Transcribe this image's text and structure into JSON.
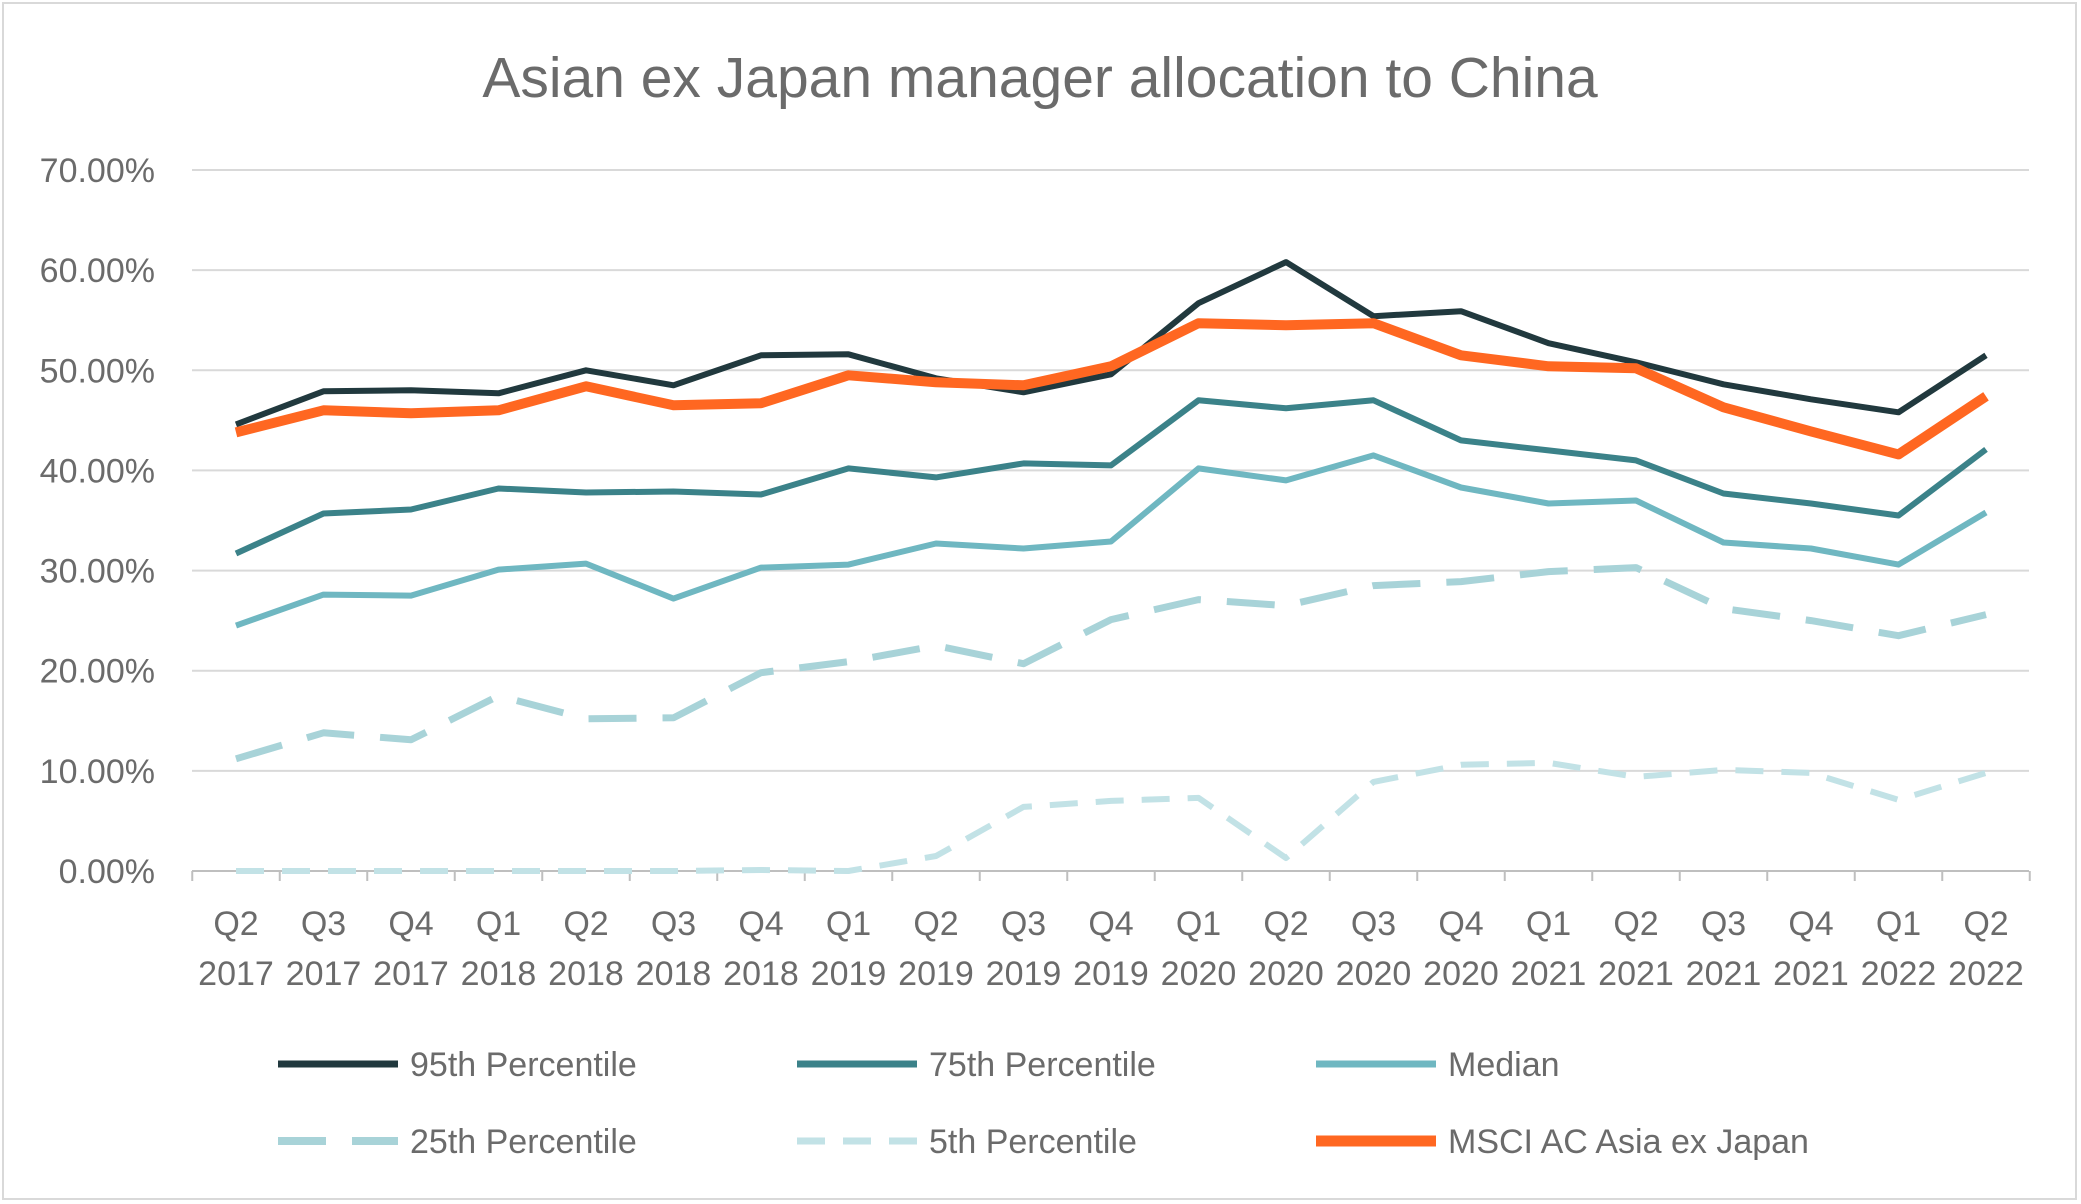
{
  "chart_data": {
    "type": "line",
    "title": "Asian ex Japan manager allocation to China",
    "xlabel": "",
    "ylabel": "",
    "ylim": [
      0,
      70
    ],
    "y_ticks": [
      "0.00%",
      "10.00%",
      "20.00%",
      "30.00%",
      "40.00%",
      "50.00%",
      "60.00%",
      "70.00%"
    ],
    "grid": true,
    "legend_position": "bottom",
    "categories": [
      [
        "Q2",
        "2017"
      ],
      [
        "Q3",
        "2017"
      ],
      [
        "Q4",
        "2017"
      ],
      [
        "Q1",
        "2018"
      ],
      [
        "Q2",
        "2018"
      ],
      [
        "Q3",
        "2018"
      ],
      [
        "Q4",
        "2018"
      ],
      [
        "Q1",
        "2019"
      ],
      [
        "Q2",
        "2019"
      ],
      [
        "Q3",
        "2019"
      ],
      [
        "Q4",
        "2019"
      ],
      [
        "Q1",
        "2020"
      ],
      [
        "Q2",
        "2020"
      ],
      [
        "Q3",
        "2020"
      ],
      [
        "Q4",
        "2020"
      ],
      [
        "Q1",
        "2021"
      ],
      [
        "Q2",
        "2021"
      ],
      [
        "Q3",
        "2021"
      ],
      [
        "Q4",
        "2021"
      ],
      [
        "Q1",
        "2022"
      ],
      [
        "Q2",
        "2022"
      ]
    ],
    "series": [
      {
        "name": "95th Percentile",
        "color": "#21393e",
        "dash": "solid",
        "values": [
          44.6,
          47.9,
          48.0,
          47.7,
          50.0,
          48.5,
          51.5,
          51.6,
          49.2,
          47.8,
          49.6,
          56.7,
          60.8,
          55.4,
          55.9,
          52.7,
          50.8,
          48.6,
          47.1,
          45.8,
          51.5
        ]
      },
      {
        "name": "75th Percentile",
        "color": "#3b8289",
        "dash": "solid",
        "values": [
          31.7,
          35.7,
          36.1,
          38.2,
          37.8,
          37.9,
          37.6,
          40.2,
          39.3,
          40.7,
          40.5,
          47.0,
          46.2,
          47.0,
          43.0,
          42.0,
          41.0,
          37.7,
          36.7,
          35.5,
          42.1
        ]
      },
      {
        "name": "Median",
        "color": "#6fb7c1",
        "dash": "solid",
        "values": [
          24.5,
          27.6,
          27.5,
          30.1,
          30.7,
          27.2,
          30.3,
          30.6,
          32.7,
          32.2,
          32.9,
          40.2,
          39.0,
          41.5,
          38.3,
          36.7,
          37.0,
          32.8,
          32.2,
          30.6,
          35.8
        ]
      },
      {
        "name": "25th Percentile",
        "color": "#a8d3d8",
        "dash": "long-dash",
        "values": [
          11.2,
          13.8,
          13.1,
          17.5,
          15.2,
          15.3,
          19.8,
          20.9,
          22.5,
          20.7,
          25.1,
          27.1,
          26.5,
          28.5,
          28.9,
          29.9,
          30.3,
          26.2,
          25.0,
          23.5,
          25.6
        ]
      },
      {
        "name": "5th Percentile",
        "color": "#c2e2e6",
        "dash": "dash",
        "values": [
          0.0,
          0.0,
          0.0,
          0.0,
          0.0,
          0.0,
          0.1,
          0.0,
          1.5,
          6.4,
          7.0,
          7.3,
          1.3,
          8.9,
          10.6,
          10.8,
          9.4,
          10.1,
          9.8,
          7.1,
          9.8
        ]
      },
      {
        "name": "MSCI AC Asia ex Japan",
        "color": "#ff6721",
        "dash": "solid-thick",
        "values": [
          43.8,
          46.0,
          45.7,
          46.0,
          48.4,
          46.5,
          46.7,
          49.5,
          48.8,
          48.5,
          50.4,
          54.7,
          54.5,
          54.7,
          51.5,
          50.4,
          50.2,
          46.3,
          43.9,
          41.6,
          47.4
        ]
      }
    ]
  }
}
